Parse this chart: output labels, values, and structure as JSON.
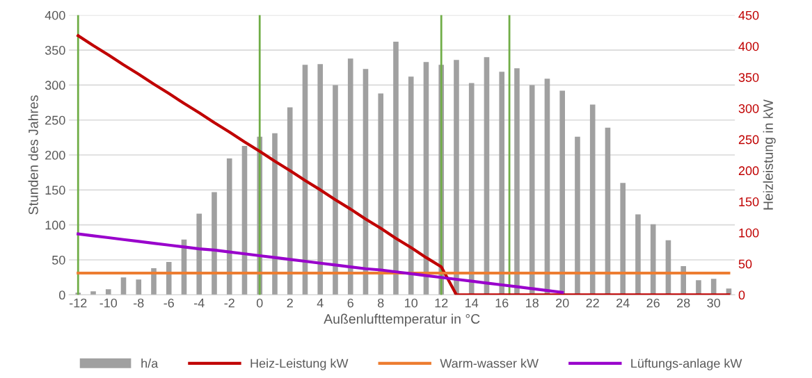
{
  "chart_data": {
    "type": "bar",
    "xlabel": "Außenlufttemperatur in °C",
    "ylabel": "Stunden des Jahres",
    "y2label": "Heizleistung in kW",
    "x": [
      -12,
      -11,
      -10,
      -9,
      -8,
      -7,
      -6,
      -5,
      -4,
      -3,
      -2,
      -1,
      0,
      1,
      2,
      3,
      4,
      5,
      6,
      7,
      8,
      9,
      10,
      11,
      12,
      13,
      14,
      15,
      16,
      17,
      18,
      19,
      20,
      21,
      22,
      23,
      24,
      25,
      26,
      27,
      28,
      29,
      30,
      31
    ],
    "xlim": [
      -12.6,
      31.4
    ],
    "xticks": [
      -12,
      -10,
      -8,
      -6,
      -4,
      -2,
      0,
      2,
      4,
      6,
      8,
      10,
      12,
      14,
      16,
      18,
      20,
      22,
      24,
      26,
      28,
      30
    ],
    "ylim": [
      0,
      400
    ],
    "yticks": [
      0,
      50,
      100,
      150,
      200,
      250,
      300,
      350,
      400
    ],
    "y2lim": [
      0,
      450
    ],
    "y2ticks": [
      0,
      50,
      100,
      150,
      200,
      250,
      300,
      350,
      400,
      450
    ],
    "grid": "y",
    "legend": "bottom",
    "series": [
      {
        "name": "h/a",
        "color": "#a0a0a0",
        "values": [
          3,
          5,
          8,
          25,
          22,
          38,
          47,
          79,
          116,
          147,
          195,
          213,
          226,
          231,
          268,
          329,
          330,
          300,
          338,
          323,
          288,
          362,
          312,
          333,
          329,
          336,
          303,
          340,
          319,
          324,
          300,
          309,
          292,
          226,
          272,
          239,
          160,
          115,
          101,
          78,
          41,
          21,
          23,
          9
        ]
      },
      {
        "name": "Heiz-Leistung kW",
        "type": "line",
        "axis": "y2",
        "color": "#c00000",
        "values": [
          417,
          401,
          386,
          370,
          355,
          339,
          324,
          308,
          293,
          277,
          262,
          246,
          231,
          215,
          200,
          184,
          169,
          153,
          138,
          122,
          107,
          91,
          76,
          60,
          45,
          0,
          0,
          0,
          0,
          0,
          0,
          0,
          0,
          0,
          0,
          0,
          0,
          0,
          0,
          0,
          0,
          0,
          0,
          0
        ]
      },
      {
        "name": "Warm-wasser kW",
        "type": "line",
        "axis": "y2",
        "color": "#ed7d31",
        "values": [
          35,
          35,
          35,
          35,
          35,
          35,
          35,
          35,
          35,
          35,
          35,
          35,
          35,
          35,
          35,
          35,
          35,
          35,
          35,
          35,
          35,
          35,
          35,
          35,
          35,
          35,
          35,
          35,
          35,
          35,
          35,
          35,
          35,
          35,
          35,
          35,
          35,
          35,
          35,
          35,
          35,
          35,
          35,
          35
        ]
      },
      {
        "name": "Lüftungs-anlage kW",
        "type": "line",
        "axis": "y2",
        "color": "#9900cc",
        "values": [
          98,
          95,
          92,
          89,
          86,
          83,
          80,
          77,
          74,
          72,
          69,
          66,
          63,
          60,
          57,
          54,
          51,
          48,
          45,
          42,
          40,
          37,
          34,
          31,
          28,
          25,
          22,
          19,
          16,
          13,
          10,
          7,
          4,
          null,
          null,
          null,
          null,
          null,
          null,
          null,
          null,
          null,
          null,
          null
        ]
      }
    ],
    "ref_lines": [
      {
        "axis": "x",
        "value": -12,
        "color": "#70ad47"
      },
      {
        "axis": "x",
        "value": 0,
        "color": "#70ad47"
      },
      {
        "axis": "x",
        "value": 12,
        "color": "#70ad47"
      },
      {
        "axis": "x",
        "value": 16.5,
        "color": "#70ad47"
      }
    ]
  }
}
